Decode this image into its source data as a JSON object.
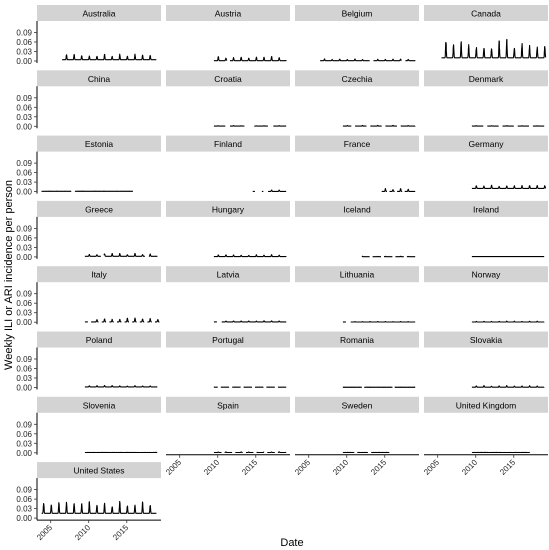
{
  "chart_data": {
    "type": "line",
    "layout": "facet-grid",
    "ylabel": "Weekly ILI or ARI incidence per person",
    "xlabel": "Date",
    "ylim": [
      0,
      0.12
    ],
    "y_ticks": [
      "0.00",
      "0.03",
      "0.06",
      "0.09"
    ],
    "y_tick_values": [
      0,
      0.03,
      0.06,
      0.09
    ],
    "xlim": [
      2003.2,
      2019.5
    ],
    "x_ticks": [
      "2005",
      "2010",
      "2015"
    ],
    "x_tick_values": [
      2005,
      2010,
      2015
    ],
    "panel_background": "#ffffff",
    "strip_background": "#d3d3d3",
    "line_color": "#000000",
    "panels": [
      {
        "name": "Australia",
        "start": 2006.5,
        "end": 2018.9,
        "style": "seasonal",
        "peak": 0.02,
        "base": 0.004,
        "gaps": []
      },
      {
        "name": "Austria",
        "start": 2009.5,
        "end": 2019.0,
        "style": "seasonal",
        "peak": 0.014,
        "base": 0.001,
        "gaps": [
          [
            2011.2,
            2011.6
          ]
        ]
      },
      {
        "name": "Belgium",
        "start": 2006.5,
        "end": 2019.0,
        "style": "seasonal",
        "peak": 0.006,
        "base": 0.001,
        "gaps": [
          [
            2013.0,
            2013.5
          ],
          [
            2017.2,
            2017.7
          ]
        ]
      },
      {
        "name": "Canada",
        "start": 2005.5,
        "end": 2019.2,
        "style": "seasonal",
        "peak": 0.06,
        "base": 0.01,
        "gaps": []
      },
      {
        "name": "China",
        "start": 0,
        "end": 0,
        "style": "none",
        "peak": 0,
        "base": 0,
        "gaps": []
      },
      {
        "name": "Croatia",
        "start": 2009.5,
        "end": 2019.0,
        "style": "seasonal",
        "peak": 0.002,
        "base": 0.0005,
        "gaps": [
          [
            2011.0,
            2011.6
          ],
          [
            2013.5,
            2014.8
          ],
          [
            2016.6,
            2017.3
          ]
        ]
      },
      {
        "name": "Czechia",
        "start": 2009.5,
        "end": 2019.0,
        "style": "seasonal",
        "peak": 0.003,
        "base": 0.0005,
        "gaps": [
          [
            2010.6,
            2011.1
          ],
          [
            2012.6,
            2013.1
          ],
          [
            2014.6,
            2015.1
          ],
          [
            2016.6,
            2017.1
          ]
        ]
      },
      {
        "name": "Denmark",
        "start": 2009.5,
        "end": 2019.0,
        "style": "seasonal",
        "peak": 0.002,
        "base": 0.0005,
        "gaps": [
          [
            2011.0,
            2011.5
          ],
          [
            2013.0,
            2013.5
          ],
          [
            2015.0,
            2015.5
          ],
          [
            2017.0,
            2017.5
          ]
        ]
      },
      {
        "name": "Estonia",
        "start": 2003.8,
        "end": 2015.8,
        "style": "flat",
        "peak": 0.001,
        "base": 0.001,
        "gaps": [
          [
            2007.7,
            2008.2
          ]
        ]
      },
      {
        "name": "Finland",
        "start": 2014.6,
        "end": 2019.0,
        "style": "seasonal",
        "peak": 0.006,
        "base": 0.0005,
        "gaps": [
          [
            2014.9,
            2015.8
          ],
          [
            2016.0,
            2016.6
          ]
        ]
      },
      {
        "name": "France",
        "start": 2014.6,
        "end": 2019.0,
        "style": "seasonal",
        "peak": 0.008,
        "base": 0.0005,
        "gaps": [
          [
            2015.3,
            2015.6
          ],
          [
            2016.3,
            2016.6
          ],
          [
            2017.3,
            2017.6
          ]
        ]
      },
      {
        "name": "Germany",
        "start": 2009.5,
        "end": 2019.2,
        "style": "seasonal",
        "peak": 0.02,
        "base": 0.01,
        "gaps": []
      },
      {
        "name": "Greece",
        "start": 2009.5,
        "end": 2019.0,
        "style": "seasonal",
        "peak": 0.01,
        "base": 0.002,
        "gaps": [
          [
            2011.6,
            2012.0
          ],
          [
            2017.4,
            2017.9
          ]
        ]
      },
      {
        "name": "Hungary",
        "start": 2009.5,
        "end": 2019.0,
        "style": "seasonal",
        "peak": 0.006,
        "base": 0.001,
        "gaps": []
      },
      {
        "name": "Iceland",
        "start": 2012.0,
        "end": 2019.0,
        "style": "seasonal",
        "peak": 0.002,
        "base": 0.0005,
        "gaps": [
          [
            2013.0,
            2013.4
          ],
          [
            2014.5,
            2014.9
          ],
          [
            2016.0,
            2016.4
          ],
          [
            2017.5,
            2017.9
          ]
        ]
      },
      {
        "name": "Ireland",
        "start": 2009.5,
        "end": 2019.0,
        "style": "flat",
        "peak": 0.001,
        "base": 0.001,
        "gaps": []
      },
      {
        "name": "Italy",
        "start": 2009.5,
        "end": 2019.3,
        "style": "seasonal",
        "peak": 0.012,
        "base": 0.001,
        "gaps": [
          [
            2009.9,
            2010.3
          ],
          [
            2011.3,
            2011.7
          ],
          [
            2012.3,
            2012.7
          ],
          [
            2013.3,
            2013.7
          ],
          [
            2014.3,
            2014.7
          ],
          [
            2015.3,
            2015.7
          ],
          [
            2016.3,
            2016.7
          ],
          [
            2017.3,
            2017.7
          ],
          [
            2018.3,
            2018.7
          ]
        ]
      },
      {
        "name": "Latvia",
        "start": 2009.5,
        "end": 2019.0,
        "style": "seasonal",
        "peak": 0.004,
        "base": 0.001,
        "gaps": [
          [
            2009.9,
            2010.5
          ]
        ]
      },
      {
        "name": "Lithuania",
        "start": 2009.5,
        "end": 2019.0,
        "style": "seasonal",
        "peak": 0.002,
        "base": 0.0005,
        "gaps": [
          [
            2009.9,
            2010.5
          ]
        ]
      },
      {
        "name": "Norway",
        "start": 2009.5,
        "end": 2019.0,
        "style": "seasonal",
        "peak": 0.003,
        "base": 0.0005,
        "gaps": []
      },
      {
        "name": "Poland",
        "start": 2009.5,
        "end": 2019.0,
        "style": "seasonal",
        "peak": 0.006,
        "base": 0.002,
        "gaps": []
      },
      {
        "name": "Portugal",
        "start": 2009.5,
        "end": 2019.0,
        "style": "flat",
        "peak": 0.001,
        "base": 0.001,
        "gaps": [
          [
            2010.0,
            2010.4
          ],
          [
            2011.5,
            2011.9
          ],
          [
            2013.0,
            2013.4
          ],
          [
            2014.5,
            2014.9
          ],
          [
            2016.0,
            2016.4
          ],
          [
            2017.5,
            2017.9
          ]
        ]
      },
      {
        "name": "Romania",
        "start": 2009.5,
        "end": 2019.0,
        "style": "flat",
        "peak": 0.0008,
        "base": 0.0008,
        "gaps": [
          [
            2012.0,
            2012.3
          ],
          [
            2016.0,
            2016.3
          ]
        ]
      },
      {
        "name": "Slovakia",
        "start": 2009.5,
        "end": 2019.0,
        "style": "seasonal",
        "peak": 0.006,
        "base": 0.001,
        "gaps": []
      },
      {
        "name": "Slovenia",
        "start": 2009.5,
        "end": 2019.0,
        "style": "flat",
        "peak": 0.002,
        "base": 0.001,
        "gaps": []
      },
      {
        "name": "Spain",
        "start": 2009.5,
        "end": 2019.0,
        "style": "seasonal",
        "peak": 0.003,
        "base": 0.001,
        "gaps": [
          [
            2010.5,
            2010.9
          ],
          [
            2011.9,
            2012.3
          ],
          [
            2013.3,
            2013.7
          ],
          [
            2014.7,
            2015.1
          ],
          [
            2016.1,
            2016.5
          ],
          [
            2017.5,
            2017.9
          ]
        ]
      },
      {
        "name": "Sweden",
        "start": 2009.5,
        "end": 2015.6,
        "style": "flat",
        "peak": 0.001,
        "base": 0.001,
        "gaps": [
          [
            2011.0,
            2011.4
          ],
          [
            2012.8,
            2013.2
          ]
        ]
      },
      {
        "name": "United Kingdom",
        "start": 2009.5,
        "end": 2017.1,
        "style": "flat",
        "peak": 0.002,
        "base": 0.001,
        "gaps": []
      },
      {
        "name": "United States",
        "start": 2003.8,
        "end": 2018.9,
        "style": "seasonal",
        "peak": 0.05,
        "base": 0.015,
        "gaps": []
      }
    ]
  }
}
